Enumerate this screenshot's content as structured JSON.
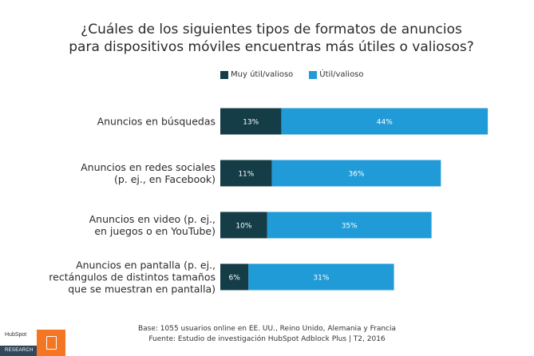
{
  "title_line1": "¿Cuáles de los siguientes tipos de formatos de anuncios",
  "title_line2": "para dispositivos móviles encuentras más útiles o valiosos?",
  "legend": [
    {
      "label": "Muy útil/valioso",
      "color": "#143d47"
    },
    {
      "label": "Útil/valioso",
      "color": "#209bd7"
    }
  ],
  "chart_data": {
    "type": "bar",
    "orientation": "horizontal",
    "stacked": true,
    "categories": [
      [
        "Anuncios en búsquedas"
      ],
      [
        "Anuncios en redes sociales",
        "(p. ej., en Facebook)"
      ],
      [
        "Anuncios en video (p. ej.,",
        "en juegos o en YouTube)"
      ],
      [
        "Anuncios en pantalla (p. ej.,",
        "rectángulos de distintos tamaños",
        "que se muestran en pantalla)"
      ]
    ],
    "series": [
      {
        "name": "Muy útil/valioso",
        "color": "#143d47",
        "values": [
          13,
          11,
          10,
          6
        ],
        "labels": [
          "13%",
          "11%",
          "10%",
          "6%"
        ]
      },
      {
        "name": "Útil/valioso",
        "color": "#209bd7",
        "values": [
          44,
          36,
          35,
          31
        ],
        "labels": [
          "44%",
          "36%",
          "35%",
          "31%"
        ]
      }
    ],
    "xlim": [
      0,
      57
    ],
    "grid": false,
    "legend_position": "top"
  },
  "footer_line1": "Base: 1055 usuarios online en EE. UU., Reino Unido, Alemania y Francia",
  "footer_line2": "Fuente: Estudio de investigación HubSpot Adblock Plus | T2, 2016",
  "logo": {
    "brand": "HubSpot",
    "research": "RESEARCH"
  }
}
